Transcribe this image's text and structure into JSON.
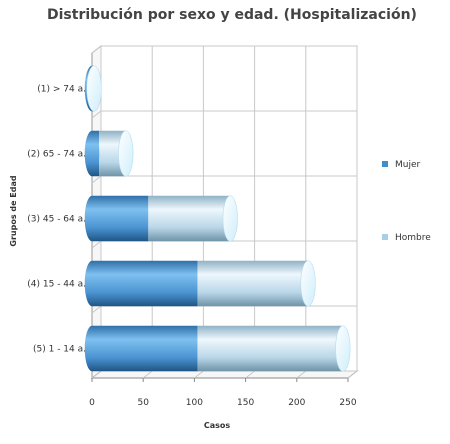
{
  "chart_data": {
    "type": "bar",
    "orientation": "horizontal",
    "stacked": true,
    "style": "3d-cylinder",
    "title": "Distribución por sexo y edad. (Hospitalización)",
    "xlabel": "Casos",
    "ylabel": "Grupos de Edad",
    "categories": [
      "(1) > 74 a.",
      "(2) 65 - 74 a.",
      "(3) 45 - 64 a.",
      "(4) 15 - 44 a.",
      "(5) 1 - 14 a."
    ],
    "series": [
      {
        "name": "Mujer",
        "values": [
          1,
          7,
          55,
          103,
          103
        ],
        "color": "#3f8fce"
      },
      {
        "name": "Hombre",
        "values": [
          1,
          26,
          80,
          108,
          142
        ],
        "color": "#a9cfe8"
      }
    ],
    "xlim": [
      0,
      250
    ],
    "xticks": [
      "0",
      "50",
      "100",
      "150",
      "200",
      "250"
    ],
    "grid": true,
    "legend": "right"
  }
}
